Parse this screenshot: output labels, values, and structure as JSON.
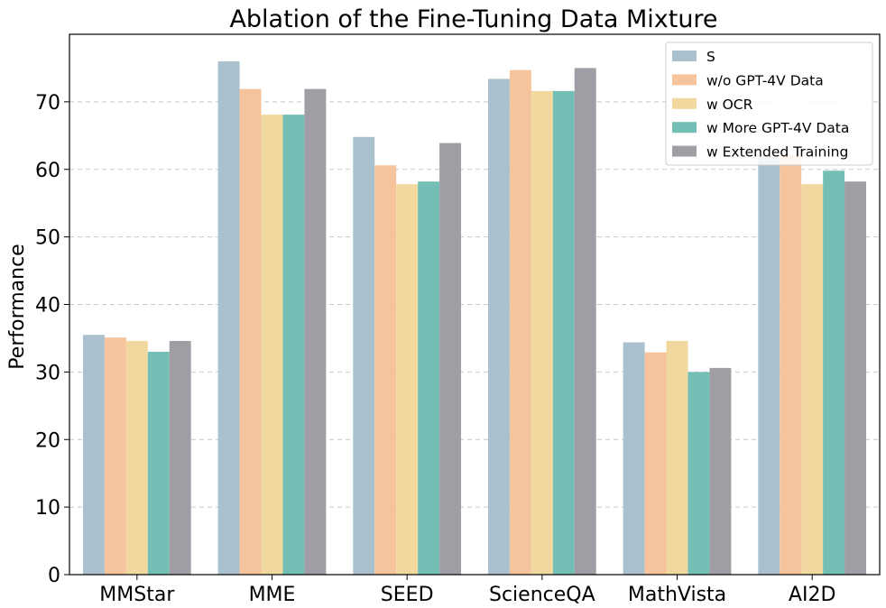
{
  "chart_data": {
    "type": "bar",
    "title": "Ablation of the Fine-Tuning Data Mixture",
    "xlabel": "",
    "ylabel": "Performance",
    "ylim": [
      0,
      80
    ],
    "yticks": [
      0,
      10,
      20,
      30,
      40,
      50,
      60,
      70
    ],
    "grid": "y dashed",
    "legend_position": "top-right",
    "categories": [
      "MMStar",
      "MME",
      "SEED",
      "ScienceQA",
      "MathVista",
      "AI2D"
    ],
    "series": [
      {
        "name": "S",
        "color": "#a9c1ce",
        "values": [
          35.5,
          76.0,
          64.8,
          73.4,
          34.4,
          62.0
        ]
      },
      {
        "name": "w/o GPT-4V Data",
        "color": "#f6c49c",
        "values": [
          35.1,
          71.9,
          60.6,
          74.7,
          32.9,
          62.0
        ]
      },
      {
        "name": "w OCR",
        "color": "#f0d89e",
        "values": [
          34.6,
          68.1,
          57.8,
          71.6,
          34.6,
          57.8
        ]
      },
      {
        "name": "w More GPT-4V Data",
        "color": "#74bfb5",
        "values": [
          33.0,
          68.1,
          58.2,
          71.6,
          30.0,
          59.8
        ]
      },
      {
        "name": "w Extended Training",
        "color": "#a19da5",
        "values": [
          34.6,
          71.9,
          63.9,
          75.0,
          30.6,
          58.2
        ]
      }
    ]
  }
}
